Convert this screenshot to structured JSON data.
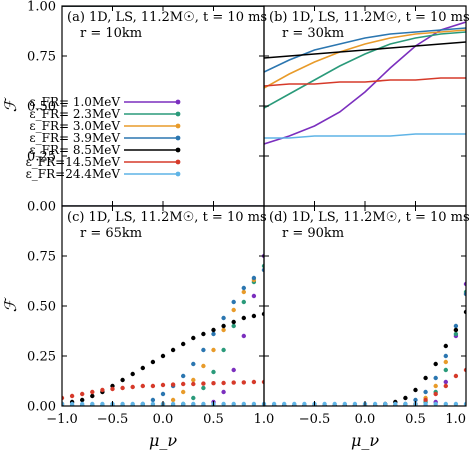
{
  "chart_data": {
    "type": "line",
    "yaxis_label": "ℱ",
    "xaxis_label": "μ_ν",
    "xlim": [
      -1.0,
      1.0
    ],
    "ylim": [
      0.0,
      1.0
    ],
    "x_ticks": [
      "−1.0",
      "−0.5",
      "0.0",
      "0.5",
      "1.0"
    ],
    "x_ticks_right": [
      "−0.5",
      "0.0",
      "0.5",
      "1.0"
    ],
    "y_ticks": [
      "0.00",
      "0.25",
      "0.50",
      "0.75",
      "1.00"
    ],
    "series_colors": [
      "#7b2fbe",
      "#2a9a7a",
      "#e89b2a",
      "#2b76b0",
      "#000000",
      "#d63a2a",
      "#5fb4e6"
    ],
    "legend": [
      {
        "label": "ε_FR= 1.0MeV",
        "color": "#7b2fbe"
      },
      {
        "label": "ε_FR= 2.3MeV",
        "color": "#2a9a7a"
      },
      {
        "label": "ε_FR= 3.0MeV",
        "color": "#e89b2a"
      },
      {
        "label": "ε_FR= 3.9MeV",
        "color": "#2b76b0"
      },
      {
        "label": "ε_FR= 8.5MeV",
        "color": "#000000"
      },
      {
        "label": "ε_FR=14.5MeV",
        "color": "#d63a2a"
      },
      {
        "label": "ε_FR=24.4MeV",
        "color": "#5fb4e6"
      }
    ],
    "panels": [
      {
        "id": "a",
        "title": "(a) 1D, LS, 11.2M☉, t = 10 ms",
        "radius": "r = 10km",
        "x": [
          -1.0,
          1.0
        ],
        "series": [
          {
            "values": [
              1.0,
              1.0
            ]
          },
          {
            "values": [
              1.0,
              1.0
            ]
          },
          {
            "values": [
              1.0,
              1.0
            ]
          },
          {
            "values": [
              1.0,
              1.0
            ]
          },
          {
            "values": [
              1.0,
              1.0
            ]
          },
          {
            "values": [
              0.0,
              0.0
            ]
          },
          {
            "values": [
              0.0,
              0.0
            ]
          }
        ]
      },
      {
        "id": "b",
        "title": "(b) 1D, LS, 11.2M☉, t = 10 ms",
        "radius": "r = 30km",
        "x": [
          -1.0,
          -0.75,
          -0.5,
          -0.25,
          0.0,
          0.25,
          0.5,
          0.75,
          1.0
        ],
        "series": [
          {
            "values": [
              0.31,
              0.35,
              0.4,
              0.47,
              0.57,
              0.69,
              0.8,
              0.88,
              0.92
            ]
          },
          {
            "values": [
              0.49,
              0.56,
              0.63,
              0.7,
              0.76,
              0.81,
              0.84,
              0.86,
              0.87
            ]
          },
          {
            "values": [
              0.59,
              0.66,
              0.72,
              0.77,
              0.81,
              0.84,
              0.86,
              0.87,
              0.88
            ]
          },
          {
            "values": [
              0.67,
              0.73,
              0.78,
              0.81,
              0.84,
              0.86,
              0.87,
              0.88,
              0.89
            ]
          },
          {
            "values": [
              0.74,
              0.75,
              0.76,
              0.77,
              0.78,
              0.79,
              0.8,
              0.81,
              0.82
            ]
          },
          {
            "values": [
              0.6,
              0.61,
              0.61,
              0.62,
              0.62,
              0.63,
              0.63,
              0.64,
              0.64
            ]
          },
          {
            "values": [
              0.34,
              0.34,
              0.35,
              0.35,
              0.35,
              0.35,
              0.36,
              0.36,
              0.36
            ]
          }
        ]
      },
      {
        "id": "c",
        "title": "(c) 1D, LS, 11.2M☉, t = 10 ms",
        "radius": "r = 65km",
        "style": "points",
        "x": [
          -1.0,
          -0.9,
          -0.8,
          -0.7,
          -0.6,
          -0.5,
          -0.4,
          -0.3,
          -0.2,
          -0.1,
          0.0,
          0.1,
          0.2,
          0.3,
          0.4,
          0.5,
          0.6,
          0.7,
          0.8,
          0.9,
          1.0
        ],
        "series": [
          {
            "values": [
              0.0,
              0.0,
              0.0,
              0.0,
              0.0,
              0.0,
              0.0,
              0.0,
              0.0,
              0.0,
              0.0,
              0.0,
              0.0,
              0.0,
              0.0,
              0.02,
              0.07,
              0.18,
              0.35,
              0.55,
              0.75
            ]
          },
          {
            "values": [
              0.0,
              0.0,
              0.0,
              0.0,
              0.0,
              0.0,
              0.0,
              0.0,
              0.0,
              0.0,
              0.0,
              0.0,
              0.01,
              0.04,
              0.09,
              0.17,
              0.28,
              0.4,
              0.52,
              0.62,
              0.7
            ]
          },
          {
            "values": [
              0.0,
              0.0,
              0.0,
              0.0,
              0.0,
              0.0,
              0.0,
              0.0,
              0.0,
              0.0,
              0.01,
              0.03,
              0.07,
              0.13,
              0.2,
              0.28,
              0.38,
              0.48,
              0.57,
              0.63,
              0.68
            ]
          },
          {
            "values": [
              0.0,
              0.0,
              0.0,
              0.0,
              0.0,
              0.0,
              0.0,
              0.0,
              0.01,
              0.03,
              0.06,
              0.1,
              0.15,
              0.21,
              0.28,
              0.36,
              0.44,
              0.52,
              0.59,
              0.64,
              0.68
            ]
          },
          {
            "values": [
              0.01,
              0.02,
              0.03,
              0.05,
              0.07,
              0.1,
              0.13,
              0.16,
              0.19,
              0.22,
              0.25,
              0.28,
              0.31,
              0.34,
              0.36,
              0.38,
              0.4,
              0.42,
              0.44,
              0.45,
              0.46
            ]
          },
          {
            "values": [
              0.04,
              0.05,
              0.06,
              0.07,
              0.08,
              0.085,
              0.09,
              0.095,
              0.1,
              0.1,
              0.105,
              0.107,
              0.11,
              0.11,
              0.112,
              0.114,
              0.115,
              0.117,
              0.118,
              0.12,
              0.12
            ]
          },
          {
            "values": [
              0.01,
              0.01,
              0.01,
              0.01,
              0.01,
              0.01,
              0.01,
              0.01,
              0.01,
              0.01,
              0.01,
              0.01,
              0.01,
              0.01,
              0.01,
              0.01,
              0.01,
              0.01,
              0.01,
              0.01,
              0.01
            ]
          }
        ]
      },
      {
        "id": "d",
        "title": "(d) 1D, LS, 11.2M☉, t = 10 ms",
        "radius": "r = 90km",
        "style": "points",
        "x": [
          -1.0,
          -0.9,
          -0.8,
          -0.7,
          -0.6,
          -0.5,
          -0.4,
          -0.3,
          -0.2,
          -0.1,
          0.0,
          0.1,
          0.2,
          0.3,
          0.4,
          0.5,
          0.6,
          0.7,
          0.8,
          0.9,
          1.0
        ],
        "series": [
          {
            "values": [
              0.0,
              0.0,
              0.0,
              0.0,
              0.0,
              0.0,
              0.0,
              0.0,
              0.0,
              0.0,
              0.0,
              0.0,
              0.0,
              0.0,
              0.0,
              0.0,
              0.0,
              0.02,
              0.12,
              0.35,
              0.61
            ]
          },
          {
            "values": [
              0.0,
              0.0,
              0.0,
              0.0,
              0.0,
              0.0,
              0.0,
              0.0,
              0.0,
              0.0,
              0.0,
              0.0,
              0.0,
              0.0,
              0.0,
              0.0,
              0.02,
              0.07,
              0.18,
              0.36,
              0.57
            ]
          },
          {
            "values": [
              0.0,
              0.0,
              0.0,
              0.0,
              0.0,
              0.0,
              0.0,
              0.0,
              0.0,
              0.0,
              0.0,
              0.0,
              0.0,
              0.0,
              0.0,
              0.01,
              0.04,
              0.1,
              0.22,
              0.38,
              0.56
            ]
          },
          {
            "values": [
              0.0,
              0.0,
              0.0,
              0.0,
              0.0,
              0.0,
              0.0,
              0.0,
              0.0,
              0.0,
              0.0,
              0.0,
              0.0,
              0.0,
              0.01,
              0.03,
              0.07,
              0.14,
              0.25,
              0.4,
              0.56
            ]
          },
          {
            "values": [
              0.0,
              0.0,
              0.0,
              0.0,
              0.0,
              0.0,
              0.0,
              0.0,
              0.0,
              0.0,
              0.0,
              0.0,
              0.01,
              0.02,
              0.04,
              0.08,
              0.14,
              0.21,
              0.3,
              0.38,
              0.47
            ]
          },
          {
            "values": [
              0.0,
              0.0,
              0.0,
              0.0,
              0.0,
              0.0,
              0.0,
              0.0,
              0.0,
              0.0,
              0.0,
              0.0,
              0.0,
              0.0,
              0.0,
              0.01,
              0.03,
              0.06,
              0.1,
              0.15,
              0.18
            ]
          },
          {
            "values": [
              0.01,
              0.01,
              0.01,
              0.01,
              0.01,
              0.01,
              0.01,
              0.01,
              0.01,
              0.01,
              0.01,
              0.01,
              0.01,
              0.01,
              0.01,
              0.01,
              0.01,
              0.01,
              0.01,
              0.01,
              0.01
            ]
          }
        ]
      }
    ]
  }
}
